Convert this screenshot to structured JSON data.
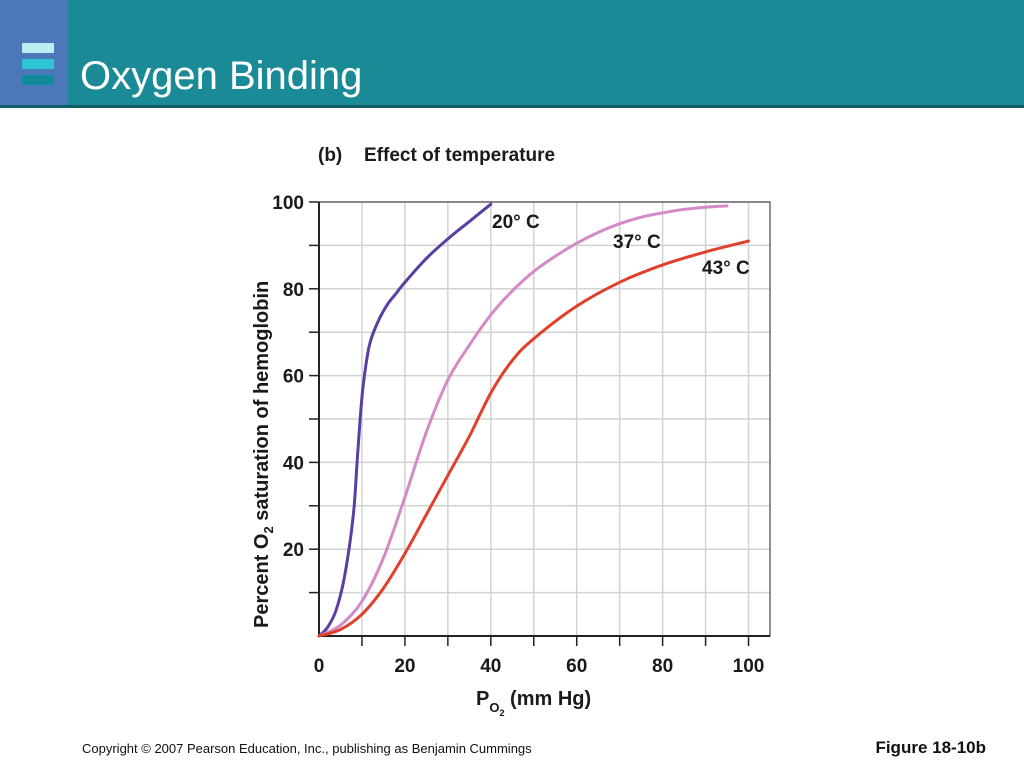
{
  "slide": {
    "title": "Oxygen Binding",
    "copyright": "Copyright © 2007 Pearson Education, Inc., publishing as Benjamin Cummings",
    "figure_label": "Figure 18-10b",
    "colors": {
      "header": "#1a8a96",
      "header_rule": "#0f5e68",
      "logo_box": "#4a78b8"
    }
  },
  "chart_data": {
    "type": "line",
    "panel_label": "(b)",
    "title": "Effect of temperature",
    "xlabel_main": "P",
    "xlabel_sub": "O",
    "xlabel_subsub": "2",
    "xlabel_tail": " (mm Hg)",
    "ylabel_main": "Percent O",
    "ylabel_sub": "2",
    "ylabel_tail": " saturation of hemoglobin",
    "xlim": [
      0,
      105
    ],
    "ylim": [
      0,
      100
    ],
    "xticks": [
      0,
      20,
      40,
      60,
      80,
      100
    ],
    "yticks": [
      20,
      40,
      60,
      80,
      100
    ],
    "grid": true,
    "series": [
      {
        "name": "20° C",
        "color": "#5b3fa0",
        "x": [
          0,
          2,
          4,
          6,
          8,
          9,
          10,
          11,
          12,
          14,
          16,
          18,
          20,
          25,
          30,
          35,
          40
        ],
        "y": [
          0,
          2,
          6,
          14,
          28,
          42,
          55,
          63,
          68,
          73,
          76.5,
          79,
          81.5,
          87,
          91.5,
          95.5,
          99.5
        ]
      },
      {
        "name": "37° C",
        "color": "#d48ac6",
        "x": [
          0,
          5,
          10,
          15,
          20,
          25,
          30,
          35,
          40,
          45,
          50,
          55,
          60,
          65,
          70,
          75,
          80,
          85,
          90,
          95
        ],
        "y": [
          0,
          2.5,
          8,
          18,
          32,
          47,
          59,
          67,
          74,
          79.5,
          84,
          87.5,
          90.5,
          93,
          95,
          96.5,
          97.5,
          98.3,
          98.8,
          99.1
        ]
      },
      {
        "name": "43° C",
        "color": "#e0402a",
        "x": [
          0,
          5,
          10,
          15,
          20,
          25,
          30,
          35,
          40,
          45,
          50,
          60,
          70,
          80,
          90,
          100
        ],
        "y": [
          0,
          1.5,
          5,
          11,
          19,
          28,
          37,
          46,
          56,
          63.5,
          68.5,
          76,
          81.5,
          85.5,
          88.5,
          91
        ]
      }
    ]
  }
}
